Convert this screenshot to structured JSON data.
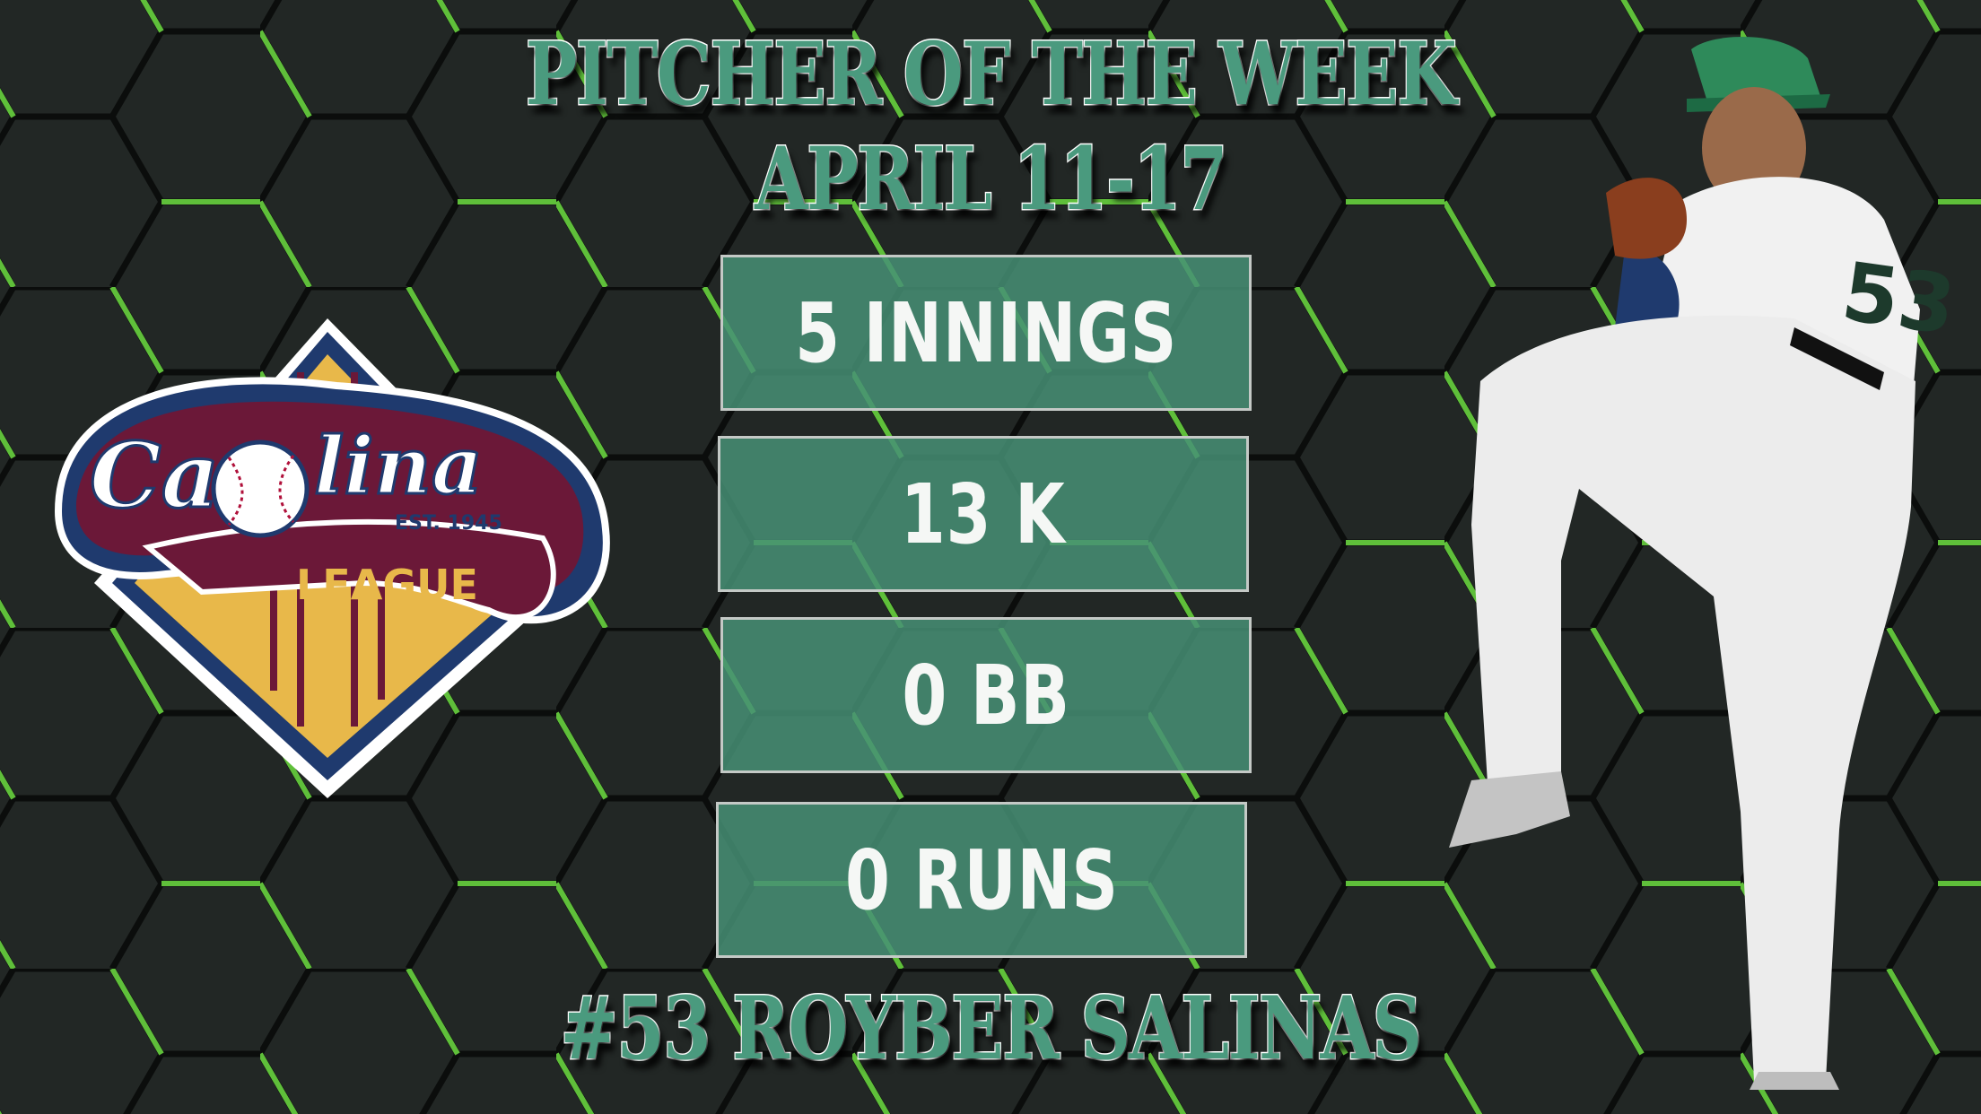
{
  "colors": {
    "background": "#222725",
    "hex_accent": "#5fbf3a",
    "title_green": "#4a9a7e",
    "box_green": "#46917a",
    "box_border": "#c4c9c6",
    "logo_maroon": "#6b1838",
    "logo_navy": "#1f3a6e",
    "logo_gold": "#e8b84a"
  },
  "header": {
    "title": "PITCHER OF THE WEEK",
    "dates": "APRIL 11-17"
  },
  "stats": [
    {
      "label": "5 INNINGS"
    },
    {
      "label": "13 K"
    },
    {
      "label": "0 BB"
    },
    {
      "label": "0 RUNS"
    }
  ],
  "player": {
    "name": "#53 ROYBER SALINAS",
    "jersey_number": "53"
  },
  "logo": {
    "wordmark": "Carolina",
    "established": "EST. 1945",
    "subtitle": "LEAGUE"
  }
}
